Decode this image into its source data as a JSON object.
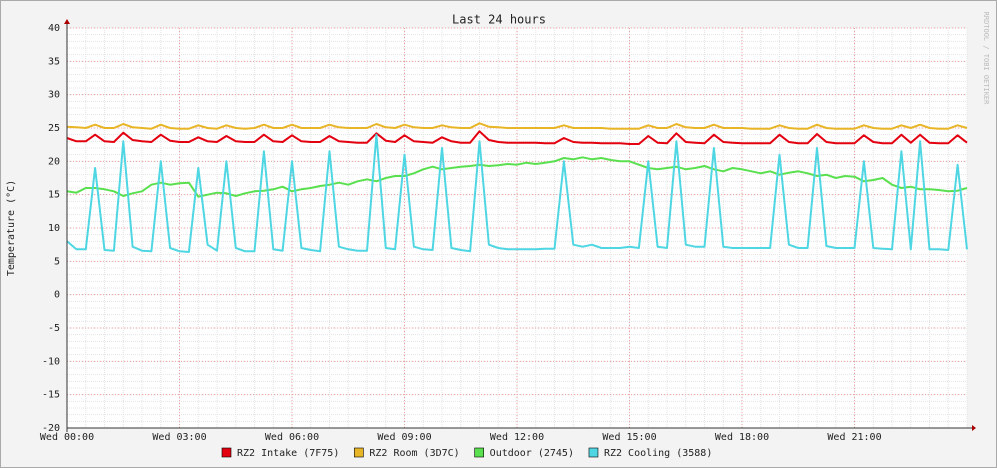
{
  "chart_data": {
    "type": "line",
    "title": "Last 24 hours",
    "y_label": "Temperature (°C)",
    "watermark": "RRDTOOL / TOBI OETIKER",
    "x": [
      0,
      0.25,
      0.5,
      0.75,
      1,
      1.25,
      1.5,
      1.75,
      2,
      2.25,
      2.5,
      2.75,
      3,
      3.25,
      3.5,
      3.75,
      4,
      4.25,
      4.5,
      4.75,
      5,
      5.25,
      5.5,
      5.75,
      6,
      6.25,
      6.5,
      6.75,
      7,
      7.25,
      7.5,
      7.75,
      8,
      8.25,
      8.5,
      8.75,
      9,
      9.25,
      9.5,
      9.75,
      10,
      10.25,
      10.5,
      10.75,
      11,
      11.25,
      11.5,
      11.75,
      12,
      12.25,
      12.5,
      12.75,
      13,
      13.25,
      13.5,
      13.75,
      14,
      14.25,
      14.5,
      14.75,
      15,
      15.25,
      15.5,
      15.75,
      16,
      16.25,
      16.5,
      16.75,
      17,
      17.25,
      17.5,
      17.75,
      18,
      18.25,
      18.5,
      18.75,
      19,
      19.25,
      19.5,
      19.75,
      20,
      20.25,
      20.5,
      20.75,
      21,
      21.25,
      21.5,
      21.75,
      22,
      22.25,
      22.5,
      22.75,
      23,
      23.25,
      23.5,
      23.75,
      24
    ],
    "xlim": [
      0,
      24
    ],
    "xticks": [
      {
        "value": 0,
        "label": "Wed 00:00"
      },
      {
        "value": 3,
        "label": "Wed 03:00"
      },
      {
        "value": 6,
        "label": "Wed 06:00"
      },
      {
        "value": 9,
        "label": "Wed 09:00"
      },
      {
        "value": 12,
        "label": "Wed 12:00"
      },
      {
        "value": 15,
        "label": "Wed 15:00"
      },
      {
        "value": 18,
        "label": "Wed 18:00"
      },
      {
        "value": 21,
        "label": "Wed 21:00"
      }
    ],
    "ylim": [
      -20,
      40
    ],
    "yticks": [
      -20,
      -15,
      -10,
      -5,
      0,
      5,
      10,
      15,
      20,
      25,
      30,
      35,
      40
    ],
    "grid": true,
    "series": [
      {
        "name": "RZ2 Intake (7F75)",
        "color": "#e3000f",
        "values": [
          23.5,
          23,
          23,
          24,
          23,
          22.9,
          24.3,
          23.2,
          23,
          22.9,
          24,
          23.1,
          22.9,
          22.9,
          23.6,
          23,
          22.9,
          23.8,
          23,
          22.9,
          22.9,
          24,
          23,
          22.9,
          23.9,
          23,
          22.9,
          22.9,
          23.8,
          23,
          22.9,
          22.8,
          22.8,
          24.2,
          23.1,
          22.9,
          23.9,
          23,
          22.9,
          22.8,
          23.6,
          23,
          22.8,
          22.8,
          24.5,
          23.2,
          22.9,
          22.8,
          22.8,
          22.8,
          22.8,
          22.7,
          22.7,
          23.5,
          22.9,
          22.8,
          22.8,
          22.7,
          22.7,
          22.7,
          22.6,
          22.6,
          23.8,
          22.8,
          22.7,
          24.2,
          22.9,
          22.8,
          22.7,
          24,
          22.9,
          22.8,
          22.7,
          22.7,
          22.7,
          22.7,
          24,
          22.9,
          22.7,
          22.7,
          24.1,
          22.9,
          22.7,
          22.7,
          22.7,
          23.9,
          22.9,
          22.7,
          22.7,
          24,
          22.8,
          24,
          22.8,
          22.7,
          22.7,
          23.9,
          22.8
        ]
      },
      {
        "name": "RZ2 Room (3D7C)",
        "color": "#e8b526",
        "values": [
          25.2,
          25.1,
          25,
          25.5,
          25,
          25,
          25.6,
          25.1,
          25,
          24.9,
          25.5,
          25,
          24.9,
          24.9,
          25.4,
          25,
          24.9,
          25.4,
          25,
          24.9,
          25,
          25.5,
          25,
          25,
          25.5,
          25,
          25,
          25,
          25.5,
          25.1,
          25,
          25,
          25,
          25.6,
          25.1,
          25,
          25.5,
          25.1,
          25,
          25,
          25.4,
          25.1,
          25,
          25,
          25.7,
          25.2,
          25.1,
          25,
          25,
          25,
          25,
          25,
          25,
          25.4,
          25,
          25,
          25,
          25,
          24.9,
          24.9,
          24.9,
          24.9,
          25.4,
          25,
          25,
          25.6,
          25.1,
          25,
          25,
          25.5,
          25,
          25,
          25,
          24.9,
          24.9,
          24.9,
          25.4,
          25,
          24.9,
          24.9,
          25.5,
          25,
          24.9,
          24.9,
          24.9,
          25.4,
          25,
          24.9,
          24.9,
          25.4,
          25,
          25.5,
          25,
          24.9,
          24.9,
          25.4,
          25
        ]
      },
      {
        "name": "Outdoor (2745)",
        "color": "#5ae04f",
        "values": [
          15.5,
          15.3,
          16,
          16,
          15.8,
          15.5,
          14.8,
          15.2,
          15.5,
          16.5,
          16.8,
          16.5,
          16.7,
          16.8,
          14.7,
          15,
          15.3,
          15.2,
          14.8,
          15.2,
          15.5,
          15.6,
          15.8,
          16.2,
          15.5,
          15.8,
          16,
          16.3,
          16.5,
          16.8,
          16.5,
          17,
          17.3,
          17,
          17.5,
          17.8,
          17.8,
          18.2,
          18.8,
          19.2,
          18.8,
          19,
          19.2,
          19.3,
          19.5,
          19.3,
          19.4,
          19.6,
          19.5,
          19.8,
          19.6,
          19.8,
          20,
          20.5,
          20.3,
          20.6,
          20.3,
          20.5,
          20.2,
          20,
          20,
          19.5,
          19,
          18.8,
          19,
          19.2,
          18.8,
          19,
          19.3,
          18.8,
          18.5,
          19,
          18.8,
          18.5,
          18.2,
          18.5,
          18,
          18.3,
          18.5,
          18.2,
          17.8,
          18,
          17.5,
          17.8,
          17.7,
          17,
          17.2,
          17.5,
          16.5,
          16,
          16.2,
          15.8,
          15.8,
          15.7,
          15.5,
          15.6,
          16
        ]
      },
      {
        "name": "RZ2 Cooling (3588)",
        "color": "#4fd6e3",
        "values": [
          8,
          6.8,
          6.8,
          19,
          6.7,
          6.6,
          23,
          7.2,
          6.6,
          6.5,
          20,
          7,
          6.5,
          6.4,
          19,
          7.5,
          6.6,
          20,
          7,
          6.5,
          6.5,
          21.5,
          6.8,
          6.6,
          20,
          7,
          6.7,
          6.5,
          21.5,
          7.2,
          6.8,
          6.6,
          6.6,
          24,
          7,
          6.8,
          21,
          7.2,
          6.8,
          6.7,
          22,
          7,
          6.7,
          6.5,
          23,
          7.5,
          7,
          6.8,
          6.8,
          6.8,
          6.8,
          6.9,
          6.9,
          20,
          7.5,
          7.2,
          7.5,
          7,
          7,
          7,
          7.2,
          7,
          20,
          7.2,
          7,
          23,
          7.5,
          7.2,
          7.2,
          22,
          7.2,
          7,
          7,
          7,
          7,
          7,
          21,
          7.5,
          7,
          7,
          22,
          7.3,
          7,
          7,
          7,
          20,
          7,
          6.9,
          6.8,
          21.5,
          6.8,
          23,
          6.8,
          6.8,
          6.7,
          19.5,
          6.8
        ]
      }
    ]
  }
}
